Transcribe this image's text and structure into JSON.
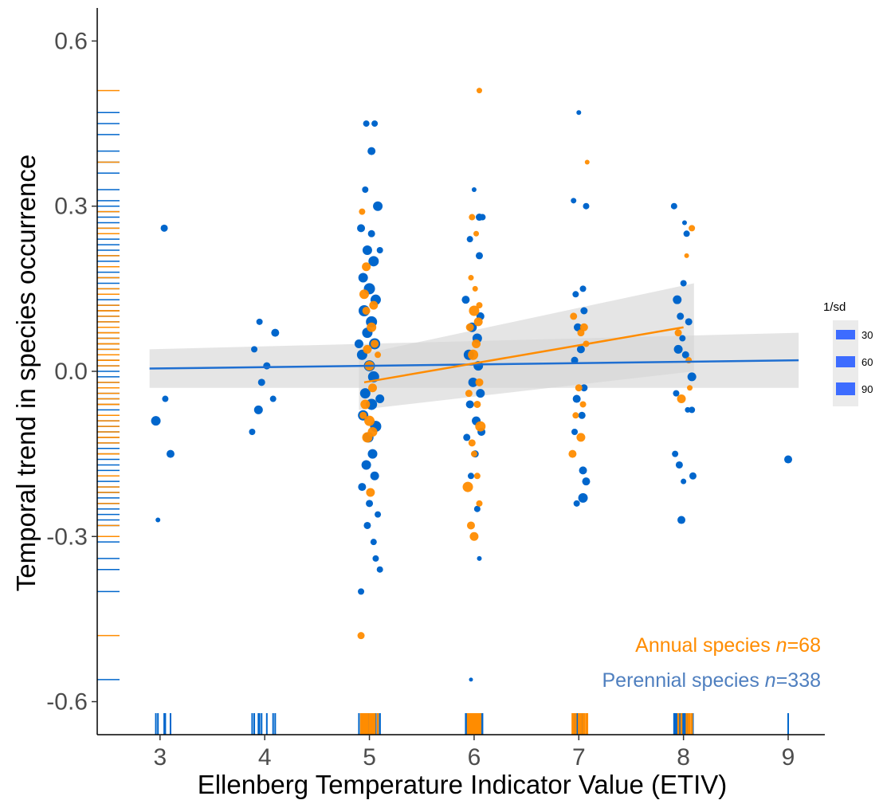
{
  "chart_data": {
    "type": "scatter",
    "xlabel": "Ellenberg Temperature Indicator Value (ETIV)",
    "ylabel": "Temporal trend in species occurrence",
    "xlim": [
      2.4,
      9.35
    ],
    "ylim": [
      -0.66,
      0.66
    ],
    "x_ticks": [
      3,
      4,
      5,
      6,
      7,
      8,
      9
    ],
    "y_ticks": [
      -0.6,
      -0.3,
      0.0,
      0.3,
      0.6
    ],
    "x_tick_labels": [
      "3",
      "4",
      "5",
      "6",
      "7",
      "8",
      "9"
    ],
    "y_tick_labels": [
      "-0.6",
      "-0.3",
      "0.0",
      "0.3",
      "0.6"
    ],
    "grid": false,
    "legend": {
      "title": "1/sd",
      "placement": "right",
      "entries": [
        "30",
        "60",
        "90"
      ]
    },
    "colors": {
      "annual": "#ff8c00",
      "perennial": "#0066cc",
      "band": "#d3d3d3"
    },
    "annotations": [
      {
        "label": "Annual species ",
        "italic": "n",
        "value": "=68",
        "color": "#ff8c00"
      },
      {
        "label": "Perennial species ",
        "italic": "n",
        "value": "=338",
        "color": "#4f7fbf"
      }
    ],
    "series": [
      {
        "name": "Annual species",
        "color": "#ff8c00",
        "trend": {
          "x": [
            5,
            8
          ],
          "y": [
            -0.02,
            0.08
          ]
        },
        "ci_upper": [
          0.03,
          0.16
        ],
        "ci_lower": [
          -0.07,
          0.0
        ],
        "points": [
          [
            4.93,
            0.29,
            8
          ],
          [
            4.97,
            0.19,
            11
          ],
          [
            4.95,
            0.14,
            12
          ],
          [
            5.04,
            0.12,
            11
          ],
          [
            4.97,
            0.11,
            10
          ],
          [
            5.02,
            0.08,
            12
          ],
          [
            5.05,
            0.05,
            10
          ],
          [
            4.98,
            0.04,
            11
          ],
          [
            5.0,
            0.01,
            12
          ],
          [
            5.03,
            -0.03,
            11
          ],
          [
            4.96,
            -0.06,
            12
          ],
          [
            5.0,
            -0.09,
            13
          ],
          [
            5.03,
            -0.11,
            12
          ],
          [
            4.98,
            -0.12,
            13
          ],
          [
            5.01,
            -0.22,
            11
          ],
          [
            4.92,
            -0.48,
            9
          ],
          [
            5.08,
            0.03,
            8
          ],
          [
            4.94,
            -0.08,
            9
          ],
          [
            5.98,
            0.28,
            8
          ],
          [
            6.02,
            0.25,
            7
          ],
          [
            5.97,
            0.17,
            7
          ],
          [
            6.05,
            0.12,
            8
          ],
          [
            6.0,
            0.11,
            13
          ],
          [
            6.04,
            0.09,
            11
          ],
          [
            5.96,
            0.08,
            10
          ],
          [
            6.02,
            0.05,
            11
          ],
          [
            5.99,
            0.03,
            13
          ],
          [
            6.05,
            -0.02,
            10
          ],
          [
            5.95,
            -0.04,
            9
          ],
          [
            6.03,
            -0.06,
            9
          ],
          [
            6.06,
            -0.1,
            13
          ],
          [
            5.98,
            -0.13,
            9
          ],
          [
            6.0,
            -0.15,
            8
          ],
          [
            6.03,
            -0.19,
            8
          ],
          [
            5.94,
            -0.21,
            13
          ],
          [
            6.05,
            -0.24,
            8
          ],
          [
            5.97,
            -0.28,
            10
          ],
          [
            6.0,
            -0.3,
            11
          ],
          [
            6.05,
            0.51,
            7
          ],
          [
            6.01,
            0.15,
            7
          ],
          [
            6.95,
            0.1,
            9
          ],
          [
            7.05,
            0.08,
            10
          ],
          [
            7.02,
            0.07,
            9
          ],
          [
            7.07,
            0.05,
            8
          ],
          [
            7.0,
            -0.03,
            9
          ],
          [
            7.04,
            -0.06,
            8
          ],
          [
            6.97,
            -0.08,
            8
          ],
          [
            7.02,
            -0.12,
            11
          ],
          [
            6.94,
            -0.15,
            10
          ],
          [
            7.08,
            0.38,
            6
          ],
          [
            8.08,
            0.26,
            8
          ],
          [
            8.03,
            0.21,
            6
          ],
          [
            7.95,
            0.07,
            9
          ],
          [
            8.05,
            0.02,
            8
          ],
          [
            7.98,
            -0.05,
            11
          ],
          [
            8.06,
            -0.03,
            7
          ]
        ]
      },
      {
        "name": "Perennial species",
        "color": "#0066cc",
        "trend": {
          "x": [
            3,
            9
          ],
          "y": [
            0.005,
            0.02
          ]
        },
        "ci_upper": [
          0.04,
          0.07
        ],
        "ci_lower": [
          -0.03,
          -0.03
        ],
        "points": [
          [
            2.96,
            -0.09,
            12
          ],
          [
            3.04,
            0.26,
            9
          ],
          [
            3.05,
            -0.05,
            8
          ],
          [
            3.1,
            -0.15,
            10
          ],
          [
            2.98,
            -0.27,
            6
          ],
          [
            3.9,
            0.04,
            8
          ],
          [
            3.95,
            0.09,
            8
          ],
          [
            4.02,
            0.01,
            9
          ],
          [
            3.97,
            -0.02,
            9
          ],
          [
            4.1,
            0.07,
            10
          ],
          [
            3.94,
            -0.07,
            11
          ],
          [
            4.08,
            -0.05,
            8
          ],
          [
            3.88,
            -0.11,
            8
          ],
          [
            4.97,
            0.45,
            8
          ],
          [
            5.05,
            0.45,
            8
          ],
          [
            5.02,
            0.4,
            10
          ],
          [
            4.96,
            0.33,
            8
          ],
          [
            5.08,
            0.3,
            12
          ],
          [
            4.92,
            0.26,
            10
          ],
          [
            5.02,
            0.25,
            9
          ],
          [
            4.98,
            0.22,
            12
          ],
          [
            5.04,
            0.2,
            13
          ],
          [
            4.94,
            0.17,
            12
          ],
          [
            5.0,
            0.15,
            14
          ],
          [
            5.06,
            0.13,
            13
          ],
          [
            4.95,
            0.11,
            14
          ],
          [
            5.02,
            0.09,
            14
          ],
          [
            4.98,
            0.07,
            13
          ],
          [
            5.05,
            0.05,
            14
          ],
          [
            4.93,
            0.03,
            13
          ],
          [
            5.0,
            0.01,
            14
          ],
          [
            5.04,
            -0.01,
            14
          ],
          [
            4.96,
            -0.04,
            13
          ],
          [
            5.02,
            -0.06,
            14
          ],
          [
            4.94,
            -0.08,
            13
          ],
          [
            5.06,
            -0.1,
            14
          ],
          [
            4.99,
            -0.12,
            13
          ],
          [
            5.03,
            -0.15,
            12
          ],
          [
            4.97,
            -0.17,
            12
          ],
          [
            5.05,
            -0.19,
            11
          ],
          [
            4.93,
            -0.21,
            10
          ],
          [
            5.0,
            -0.24,
            9
          ],
          [
            5.08,
            -0.26,
            8
          ],
          [
            4.98,
            -0.28,
            9
          ],
          [
            5.04,
            -0.31,
            8
          ],
          [
            5.06,
            -0.34,
            8
          ],
          [
            5.1,
            -0.36,
            8
          ],
          [
            4.92,
            -0.4,
            8
          ],
          [
            5.1,
            0.22,
            8
          ],
          [
            4.9,
            0.05,
            11
          ],
          [
            5.1,
            -0.05,
            11
          ],
          [
            6.0,
            0.33,
            6
          ],
          [
            6.05,
            0.28,
            9
          ],
          [
            6.08,
            0.28,
            8
          ],
          [
            5.96,
            0.24,
            8
          ],
          [
            6.05,
            0.21,
            9
          ],
          [
            5.92,
            0.13,
            10
          ],
          [
            6.06,
            0.1,
            10
          ],
          [
            5.98,
            0.08,
            12
          ],
          [
            6.03,
            0.06,
            12
          ],
          [
            5.95,
            0.03,
            13
          ],
          [
            6.04,
            0.01,
            12
          ],
          [
            5.99,
            -0.02,
            12
          ],
          [
            6.06,
            -0.04,
            11
          ],
          [
            5.96,
            -0.06,
            10
          ],
          [
            6.02,
            -0.09,
            11
          ],
          [
            6.07,
            -0.11,
            10
          ],
          [
            5.93,
            -0.12,
            9
          ],
          [
            6.01,
            -0.15,
            9
          ],
          [
            5.97,
            -0.19,
            8
          ],
          [
            6.03,
            -0.25,
            8
          ],
          [
            6.05,
            -0.34,
            6
          ],
          [
            5.97,
            -0.56,
            5
          ],
          [
            7.0,
            0.47,
            6
          ],
          [
            6.95,
            0.31,
            7
          ],
          [
            7.07,
            0.3,
            8
          ],
          [
            7.04,
            0.15,
            8
          ],
          [
            6.97,
            0.14,
            8
          ],
          [
            7.05,
            0.11,
            9
          ],
          [
            6.99,
            0.08,
            10
          ],
          [
            7.02,
            0.04,
            10
          ],
          [
            6.96,
            0.02,
            9
          ],
          [
            7.05,
            -0.03,
            9
          ],
          [
            6.98,
            -0.05,
            10
          ],
          [
            7.03,
            -0.08,
            9
          ],
          [
            6.96,
            -0.11,
            8
          ],
          [
            7.04,
            -0.18,
            10
          ],
          [
            7.07,
            -0.2,
            10
          ],
          [
            7.04,
            -0.23,
            12
          ],
          [
            6.98,
            -0.24,
            8
          ],
          [
            7.91,
            0.3,
            8
          ],
          [
            8.01,
            0.27,
            6
          ],
          [
            8.03,
            0.25,
            8
          ],
          [
            8.0,
            0.16,
            8
          ],
          [
            7.94,
            0.13,
            11
          ],
          [
            7.97,
            0.1,
            9
          ],
          [
            8.05,
            0.09,
            9
          ],
          [
            7.99,
            0.06,
            8
          ],
          [
            7.95,
            0.04,
            11
          ],
          [
            8.08,
            -0.01,
            11
          ],
          [
            8.02,
            0.03,
            9
          ],
          [
            7.93,
            -0.04,
            8
          ],
          [
            8.04,
            -0.07,
            7
          ],
          [
            8.08,
            -0.07,
            8
          ],
          [
            7.92,
            -0.15,
            8
          ],
          [
            7.96,
            -0.17,
            9
          ],
          [
            8.09,
            -0.19,
            9
          ],
          [
            7.98,
            -0.27,
            10
          ],
          [
            8.0,
            -0.2,
            7
          ],
          [
            9.0,
            -0.16,
            10
          ]
        ]
      }
    ],
    "y_rug": {
      "annual": [
        0.51,
        0.38,
        0.29,
        0.26,
        0.25,
        0.21,
        0.19,
        0.17,
        0.15,
        0.14,
        0.12,
        0.11,
        0.11,
        0.1,
        0.09,
        0.08,
        0.08,
        0.07,
        0.07,
        0.06,
        0.05,
        0.05,
        0.04,
        0.03,
        0.03,
        0.02,
        0.02,
        0.01,
        -0.02,
        -0.03,
        -0.03,
        -0.04,
        -0.05,
        -0.06,
        -0.06,
        -0.08,
        -0.08,
        -0.09,
        -0.1,
        -0.11,
        -0.12,
        -0.12,
        -0.13,
        -0.15,
        -0.15,
        -0.19,
        -0.21,
        -0.22,
        -0.24,
        -0.28,
        -0.3,
        -0.48
      ],
      "perennial": [
        0.47,
        0.45,
        0.43,
        0.4,
        0.38,
        0.36,
        0.33,
        0.31,
        0.3,
        0.29,
        0.28,
        0.27,
        0.26,
        0.25,
        0.24,
        0.23,
        0.22,
        0.21,
        0.2,
        0.19,
        0.18,
        0.17,
        0.16,
        0.15,
        0.14,
        0.13,
        0.12,
        0.11,
        0.1,
        0.09,
        0.08,
        0.07,
        0.06,
        0.05,
        0.04,
        0.03,
        0.02,
        0.01,
        0.0,
        -0.01,
        -0.02,
        -0.03,
        -0.04,
        -0.05,
        -0.06,
        -0.07,
        -0.08,
        -0.09,
        -0.1,
        -0.11,
        -0.12,
        -0.13,
        -0.14,
        -0.15,
        -0.16,
        -0.17,
        -0.18,
        -0.19,
        -0.2,
        -0.21,
        -0.22,
        -0.23,
        -0.24,
        -0.25,
        -0.26,
        -0.27,
        -0.28,
        -0.31,
        -0.34,
        -0.36,
        -0.4,
        -0.56
      ]
    }
  }
}
